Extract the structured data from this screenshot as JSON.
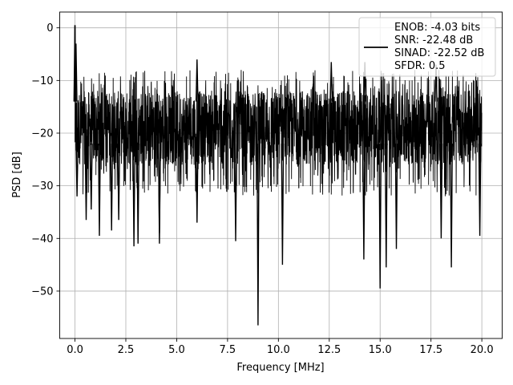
{
  "chart_data": {
    "type": "line",
    "xlabel": "Frequency [MHz]",
    "ylabel": "PSD [dB]",
    "xlim": [
      -0.75,
      21.0
    ],
    "ylim": [
      -59.0,
      3.0
    ],
    "xticks": [
      0.0,
      2.5,
      5.0,
      7.5,
      10.0,
      12.5,
      15.0,
      17.5,
      20.0
    ],
    "xtick_labels": [
      "0.0",
      "2.5",
      "5.0",
      "7.5",
      "10.0",
      "12.5",
      "15.0",
      "17.5",
      "20.0"
    ],
    "yticks": [
      0,
      -10,
      -20,
      -30,
      -40,
      -50
    ],
    "ytick_labels": [
      "0",
      "−10",
      "−20",
      "−30",
      "−40",
      "−50"
    ],
    "grid": true,
    "legend_position": "top-right",
    "legend_lines": [
      "ENOB: -4.03 bits",
      "SNR: -22.48 dB",
      "SINAD: -22.52 dB",
      "SFDR: 0.5"
    ],
    "line_color": "#000000",
    "series": [
      {
        "style": "noise-band",
        "band_low_db": -26,
        "band_high_db": -12,
        "spikes": [
          {
            "x": 0.0,
            "y": 0.5
          },
          {
            "x": 0.05,
            "y": -3
          },
          {
            "x": 0.1,
            "y": -32
          },
          {
            "x": 0.55,
            "y": -36.5
          },
          {
            "x": 0.8,
            "y": -34.5
          },
          {
            "x": 1.2,
            "y": -39.5
          },
          {
            "x": 1.8,
            "y": -38.5
          },
          {
            "x": 2.15,
            "y": -36.5
          },
          {
            "x": 2.9,
            "y": -41.5
          },
          {
            "x": 3.1,
            "y": -41
          },
          {
            "x": 4.15,
            "y": -41
          },
          {
            "x": 4.15,
            "y": -39
          },
          {
            "x": 6.0,
            "y": -37
          },
          {
            "x": 7.9,
            "y": -40.5
          },
          {
            "x": 9.0,
            "y": -56.5
          },
          {
            "x": 10.2,
            "y": -45
          },
          {
            "x": 14.2,
            "y": -44
          },
          {
            "x": 15.0,
            "y": -49.5
          },
          {
            "x": 15.3,
            "y": -45.5
          },
          {
            "x": 15.8,
            "y": -42
          },
          {
            "x": 18.0,
            "y": -40
          },
          {
            "x": 18.5,
            "y": -45.5
          },
          {
            "x": 19.9,
            "y": -39.5
          },
          {
            "x": 6.0,
            "y": -6
          },
          {
            "x": 12.6,
            "y": -6.5
          },
          {
            "x": 14.25,
            "y": -6.5
          },
          {
            "x": 17.75,
            "y": -7
          }
        ]
      }
    ]
  }
}
